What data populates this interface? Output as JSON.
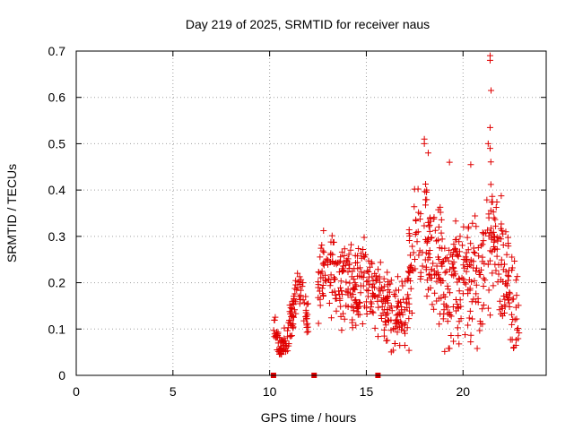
{
  "chart_data": {
    "type": "scatter",
    "title": "Day 219 of 2025, SRMTID for receiver naus",
    "xlabel": "GPS time / hours",
    "ylabel": "SRMTID / TECUs",
    "xlim": [
      0,
      24.3
    ],
    "ylim": [
      0,
      0.7
    ],
    "xticks": [
      0,
      5,
      10,
      15,
      20
    ],
    "xtick_labels": [
      "0",
      "5",
      "10",
      "15",
      "20"
    ],
    "yticks": [
      0,
      0.1,
      0.2,
      0.3,
      0.4,
      0.5,
      0.6,
      0.7
    ],
    "ytick_labels": [
      "0",
      "0.1",
      "0.2",
      "0.3",
      "0.4",
      "0.5",
      "0.6",
      "0.7"
    ],
    "grid": true,
    "marker": "+",
    "color": "#e00000",
    "data_window_hours": [
      10.2,
      22.9
    ],
    "zero_value_markers_x": [
      10.2,
      12.3,
      15.6
    ],
    "notable_points": [
      {
        "x": 21.4,
        "y": 0.69
      },
      {
        "x": 21.4,
        "y": 0.68
      },
      {
        "x": 21.45,
        "y": 0.615
      },
      {
        "x": 21.4,
        "y": 0.535
      },
      {
        "x": 18.0,
        "y": 0.51
      },
      {
        "x": 18.0,
        "y": 0.5
      },
      {
        "x": 18.2,
        "y": 0.48
      },
      {
        "x": 21.3,
        "y": 0.5
      },
      {
        "x": 21.4,
        "y": 0.49
      },
      {
        "x": 19.3,
        "y": 0.46
      },
      {
        "x": 20.4,
        "y": 0.455
      }
    ],
    "trend_segments": [
      {
        "x": [
          10.2,
          10.5,
          10.8,
          11.0
        ],
        "y": [
          0.1,
          0.07,
          0.06,
          0.1
        ]
      },
      {
        "x": [
          11.0,
          11.3,
          11.5,
          11.8,
          12.0
        ],
        "y": [
          0.1,
          0.15,
          0.2,
          0.14,
          0.12
        ]
      },
      {
        "x": [
          12.5,
          13.0,
          13.5,
          14.0,
          14.5,
          15.0
        ],
        "y": [
          0.2,
          0.24,
          0.2,
          0.22,
          0.18,
          0.24
        ]
      },
      {
        "x": [
          15.0,
          15.5,
          16.0,
          16.5,
          17.0
        ],
        "y": [
          0.2,
          0.18,
          0.15,
          0.12,
          0.13
        ]
      },
      {
        "x": [
          17.0,
          17.5,
          18.0,
          18.5,
          19.0
        ],
        "y": [
          0.2,
          0.26,
          0.3,
          0.24,
          0.25
        ]
      },
      {
        "x": [
          19.0,
          19.5,
          20.0,
          20.5,
          21.0
        ],
        "y": [
          0.18,
          0.2,
          0.22,
          0.21,
          0.18
        ]
      },
      {
        "x": [
          21.0,
          21.5,
          22.0,
          22.5,
          22.9
        ],
        "y": [
          0.22,
          0.3,
          0.24,
          0.17,
          0.1
        ]
      }
    ]
  }
}
